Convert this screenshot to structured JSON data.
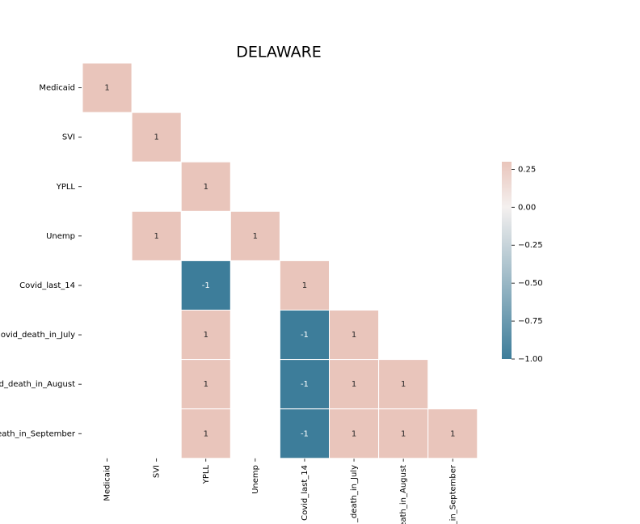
{
  "chart_data": {
    "type": "heatmap",
    "title": "DELAWARE",
    "row_labels": [
      "Medicaid",
      "SVI",
      "YPLL",
      "Unemp",
      "Covid_last_14",
      "ovid_death_in_July",
      "d_death_in_August",
      "eath_in_September"
    ],
    "col_labels": [
      "Medicaid",
      "SVI",
      "YPLL",
      "Unemp",
      "Covid_last_14",
      "_death_in_July",
      "eath_in_August",
      "_in_September"
    ],
    "values": [
      [
        1,
        null,
        null,
        null,
        null,
        null,
        null,
        null
      ],
      [
        null,
        1,
        null,
        null,
        null,
        null,
        null,
        null
      ],
      [
        null,
        null,
        1,
        null,
        null,
        null,
        null,
        null
      ],
      [
        null,
        1,
        null,
        1,
        null,
        null,
        null,
        null
      ],
      [
        null,
        null,
        -1,
        null,
        1,
        null,
        null,
        null
      ],
      [
        null,
        null,
        1,
        null,
        -1,
        1,
        null,
        null
      ],
      [
        null,
        null,
        1,
        null,
        -1,
        1,
        1,
        null
      ],
      [
        null,
        null,
        1,
        null,
        -1,
        1,
        1,
        1
      ]
    ],
    "clim": [
      -1,
      0.3
    ],
    "cticks": [
      {
        "value": 0.25,
        "label": "0.25"
      },
      {
        "value": 0,
        "label": "0.00"
      },
      {
        "value": -0.25,
        "label": "−0.25"
      },
      {
        "value": -0.5,
        "label": "−0.50"
      },
      {
        "value": -0.75,
        "label": "−0.75"
      },
      {
        "value": -1,
        "label": "−1.00"
      }
    ],
    "colors": {
      "low": "#3d7d9a",
      "mid": "#f4f0ef",
      "high": "#e9c5bb"
    }
  }
}
